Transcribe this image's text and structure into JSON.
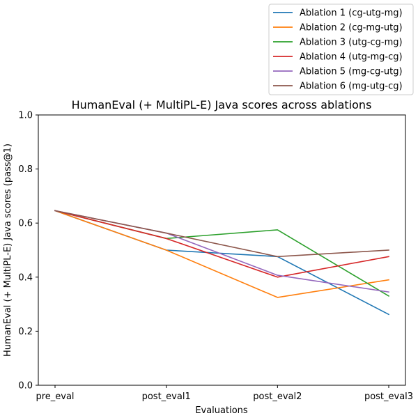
{
  "chart_data": {
    "type": "line",
    "title": "HumanEval (+ MultiPL-E) Java scores across ablations",
    "xlabel": "Evaluations",
    "ylabel": "HumanEval (+ MultiPL-E) Java scores (pass@1)",
    "categories": [
      "pre_eval",
      "post_eval1",
      "post_eval2",
      "post_eval3"
    ],
    "ylim": [
      0.0,
      1.0
    ],
    "yticks": [
      "0.0",
      "0.2",
      "0.4",
      "0.6",
      "0.8",
      "1.0"
    ],
    "grid": false,
    "legend_position": "top-right",
    "series": [
      {
        "name": "Ablation 1 (cg-utg-mg)",
        "color": "#1f77b4",
        "values": [
          0.646,
          0.5,
          0.476,
          0.262
        ]
      },
      {
        "name": "Ablation 2 (cg-mg-utg)",
        "color": "#ff7f0e",
        "values": [
          0.646,
          0.5,
          0.325,
          0.39
        ]
      },
      {
        "name": "Ablation 3 (utg-cg-mg)",
        "color": "#2ca02c",
        "values": [
          0.646,
          0.543,
          0.575,
          0.33
        ]
      },
      {
        "name": "Ablation 4 (utg-mg-cg)",
        "color": "#d62728",
        "values": [
          0.646,
          0.543,
          0.4,
          0.476
        ]
      },
      {
        "name": "Ablation 5 (mg-cg-utg)",
        "color": "#9467bd",
        "values": [
          0.646,
          0.563,
          0.407,
          0.345
        ]
      },
      {
        "name": "Ablation 6 (mg-utg-cg)",
        "color": "#8c564b",
        "values": [
          0.646,
          0.563,
          0.476,
          0.5
        ]
      }
    ]
  }
}
